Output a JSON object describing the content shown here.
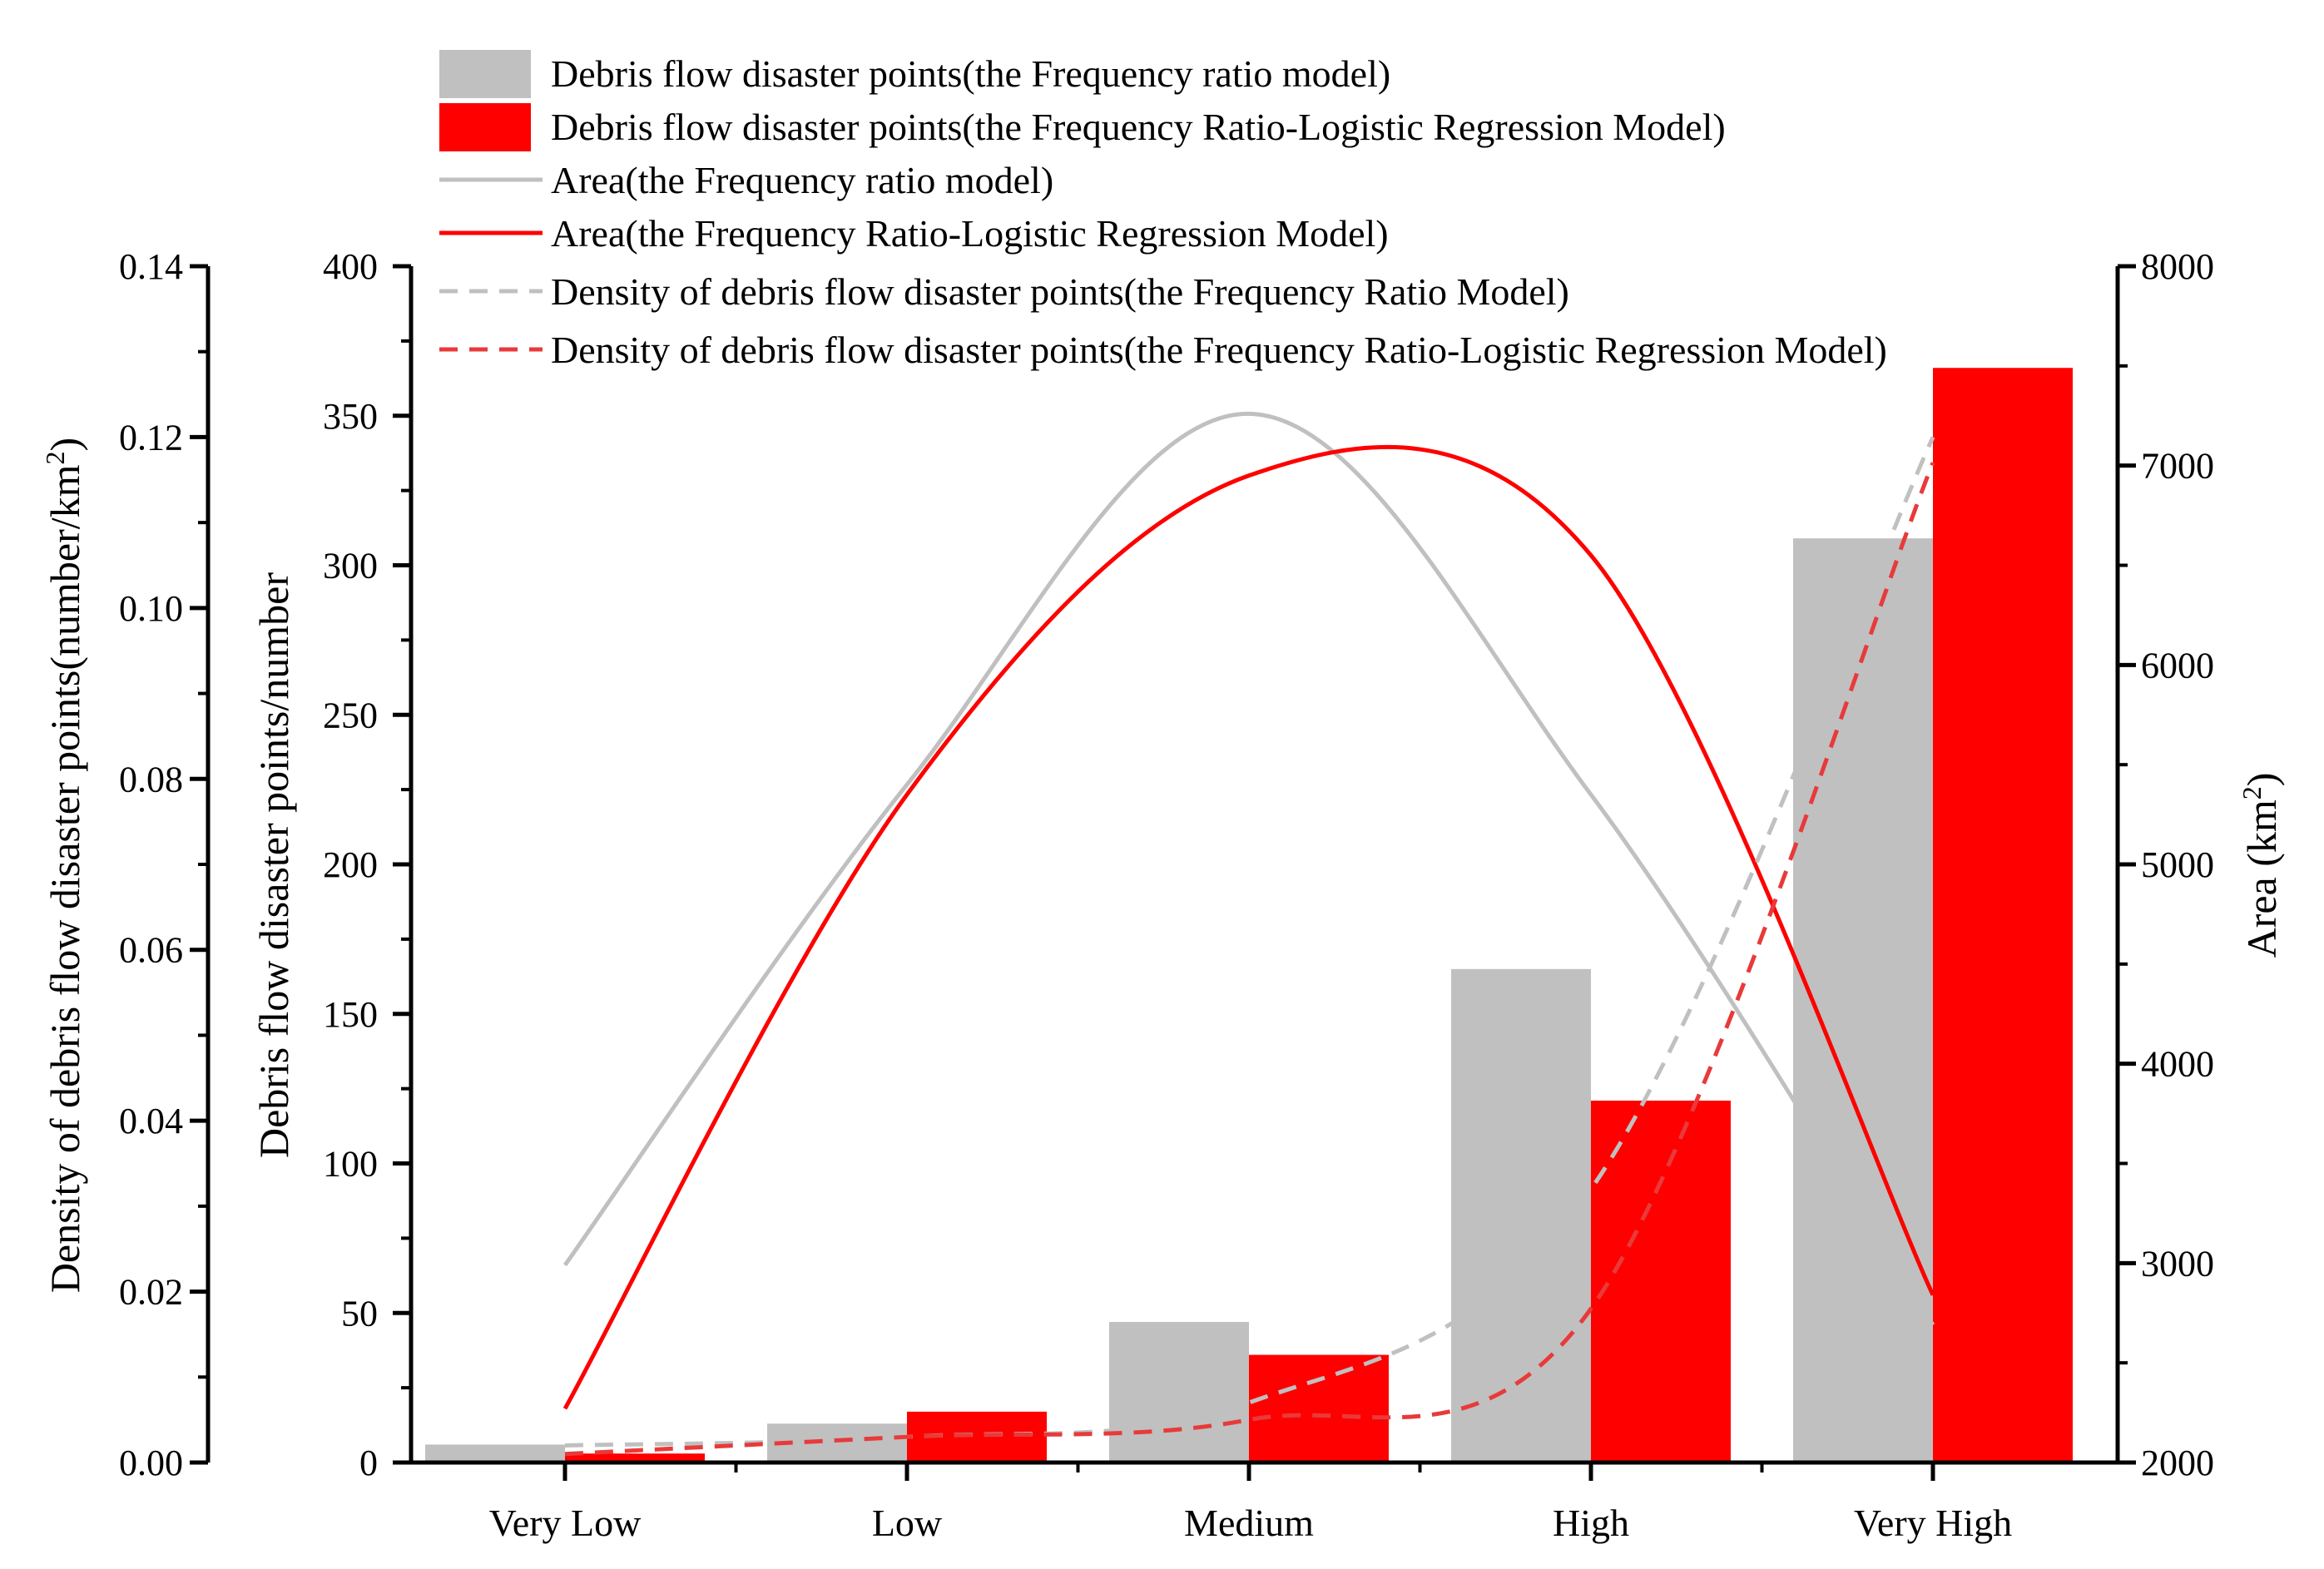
{
  "chart_data": {
    "type": "bar",
    "categories": [
      "Very Low",
      "Low",
      "Medium",
      "High",
      "Very High"
    ],
    "series": [
      {
        "name": "Debris flow disaster points(the Frequency ratio model)",
        "kind": "bar",
        "axis": "points",
        "color": "#c0c0c0",
        "values": [
          6,
          13,
          47,
          165,
          309
        ]
      },
      {
        "name": "Debris flow disaster points(the Frequency Ratio-Logistic Regression Model)",
        "kind": "bar",
        "axis": "points",
        "color": "#ff0000",
        "values": [
          3,
          17,
          36,
          121,
          366
        ]
      },
      {
        "name": "Area(the Frequency ratio model)",
        "kind": "line",
        "dash": "solid",
        "axis": "area",
        "color": "#c0c0c0",
        "values": [
          2990,
          5400,
          7260,
          5350,
          2690
        ]
      },
      {
        "name": "Area(the Frequency Ratio-Logistic Regression Model)",
        "kind": "line",
        "dash": "solid",
        "axis": "area",
        "color": "#ff0000",
        "values": [
          2270,
          5350,
          6950,
          6550,
          2840
        ]
      },
      {
        "name": "Density of debris flow disaster points(the Frequency Ratio Model)",
        "kind": "line",
        "dash": "dashed",
        "axis": "density",
        "color": "#c0c0c0",
        "values": [
          0.002,
          0.003,
          0.007,
          0.032,
          0.12
        ]
      },
      {
        "name": "Density of debris flow disaster points(the Frequency Ratio-Logistic Regression Model)",
        "kind": "line",
        "dash": "dashed",
        "axis": "density",
        "color": "#ff0000",
        "values": [
          0.001,
          0.003,
          0.005,
          0.018,
          0.117
        ]
      }
    ],
    "axes": {
      "points": {
        "label": "Debris flow disaster points/number",
        "ylim": [
          0,
          400
        ],
        "ticks": [
          "0",
          "50",
          "100",
          "150",
          "200",
          "250",
          "300",
          "350",
          "400"
        ]
      },
      "density": {
        "label": "Density of debris flow disaster points(number/km",
        "label_sup": "2",
        "label_end": ")",
        "ylim": [
          0,
          0.14
        ],
        "ticks": [
          "0.00",
          "0.02",
          "0.04",
          "0.06",
          "0.08",
          "0.10",
          "0.12",
          "0.14"
        ]
      },
      "area": {
        "label": "Area (km",
        "label_sup": "2",
        "label_end": ")",
        "ylim": [
          2000,
          8000
        ],
        "ticks": [
          "2000",
          "3000",
          "4000",
          "5000",
          "6000",
          "7000",
          "8000"
        ]
      }
    },
    "legend_position": "top"
  }
}
